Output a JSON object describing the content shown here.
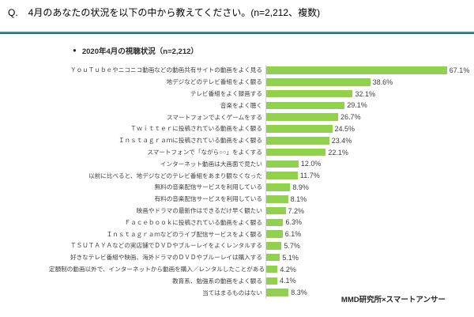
{
  "header": {
    "q_prefix": "Q.",
    "title": "4月のあなたの状況を以下の中から教えてください。(n=2,212、複数)"
  },
  "legend": {
    "bullet": "●",
    "label": "2020年4月の視聴状況（n=2,212）"
  },
  "source": "MMD研究所×スマートアンサー",
  "chart_data": {
    "type": "bar",
    "orientation": "horizontal",
    "title": "2020年4月の視聴状況（n=2,212）",
    "unit": "%",
    "xlim": [
      0,
      70
    ],
    "grid": false,
    "bar_color": "#92d050",
    "value_labels_shown": true,
    "categories": [
      "ＹｏｕＴｕｂｅやニコニコ動画などの動画共有サイトの動画をよく見る",
      "地デジなどのテレビ番組をよく観る",
      "テレビ番組をよく録画する",
      "音楽をよく聴く",
      "スマートフォンでよくゲームをする",
      "Ｔｗｉｔｔｅｒに投稿されている動画をよく観る",
      "Ｉｎｓｔａｇｒａｍに投稿されている動画をよく観る",
      "スマートフォンで「ながら○○」をよくする",
      "インターネット動画は大画面で見たい",
      "以前に比べると、地デジなどのテレビ番組をあまり観なくなった",
      "無料の音楽配信サービスを利用している",
      "有料の音楽配信サービスを利用している",
      "映画やドラマの最新作はできるだけ早く観たい",
      "Ｆａｃｅｂｏｏｋに投稿されている動画をよく観る",
      "Ｉｎｓｔａｇｒａｍなどのライブ配信サービスをよく観る",
      "ＴＳＵＴＡＹＡなどの実店舗でＤＶＤやブルーレイをよくレンタルする",
      "好きなテレビ番組や映画、海外ドラマのＤＶＤやブルーレイは購入する",
      "定額制の動画以外で、インターネットから動画を購入／レンタルしたことがある",
      "教育系、勉強系の動画をよく観る",
      "当てはまるものはない"
    ],
    "values": [
      67.1,
      38.6,
      32.1,
      29.1,
      26.7,
      24.5,
      23.4,
      22.1,
      12.0,
      11.7,
      8.9,
      8.1,
      7.2,
      6.3,
      6.1,
      5.7,
      5.1,
      4.2,
      4.1,
      8.3
    ]
  }
}
